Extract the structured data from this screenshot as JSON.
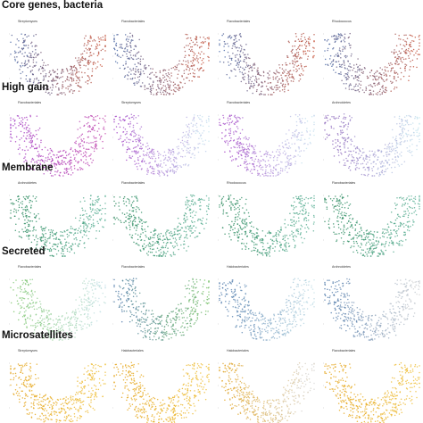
{
  "colors": {
    "core_blue": "#4a6aa8",
    "core_red": "#c8543a",
    "highgain_purple": "#a23ec4",
    "highgain_magenta": "#c54fb0",
    "highgain_light": "#c7e6f0",
    "membrane_green": "#2e8a5e",
    "membrane_teal": "#5fb39a",
    "secreted_green": "#7cc56a",
    "secreted_blue": "#4a76a8",
    "secreted_light": "#c8e3ea",
    "micro_orange": "#e3a21a",
    "micro_gold": "#f0c23c"
  },
  "sections": [
    {
      "title": "Core genes, bacteria",
      "panels": [
        "Streptomyces",
        "Flavobacteriales",
        "Flavobacteriales",
        "Rhodococcus"
      ]
    },
    {
      "title": "High gain",
      "panels": [
        "Flavobacteriales",
        "Streptomyces",
        "Flavobacteriales",
        "Archnoidetes"
      ]
    },
    {
      "title": "Membrane",
      "panels": [
        "Archnoidetes",
        "Flavobacteriales",
        "Rhodococcus",
        "Flavobacteriales"
      ]
    },
    {
      "title": "Secreted",
      "panels": [
        "Flavobacteriales",
        "Flavobacteriales",
        "Halobacteriales",
        "Archnoidetes"
      ]
    },
    {
      "title": "Microsatellites",
      "panels": [
        "Streptomyces",
        "Halobacteriales",
        "Halobacteriales",
        "Flavobacteriales"
      ]
    }
  ],
  "chart_data": {
    "type": "scatter",
    "layout": "small multiples, 5 rows x 4 columns",
    "grid": false,
    "panels": [
      {
        "row": "Core genes, bacteria",
        "col": 1,
        "colors": [
          "#4a6aa8",
          "#c8543a"
        ]
      },
      {
        "row": "Core genes, bacteria",
        "col": 2,
        "colors": [
          "#4a6aa8",
          "#c8543a"
        ]
      },
      {
        "row": "Core genes, bacteria",
        "col": 3,
        "colors": [
          "#4a6aa8",
          "#c8543a"
        ]
      },
      {
        "row": "Core genes, bacteria",
        "col": 4,
        "colors": [
          "#4a6aa8",
          "#c8543a"
        ]
      },
      {
        "row": "High gain",
        "col": 1,
        "colors": [
          "#a23ec4",
          "#c54fb0"
        ]
      },
      {
        "row": "High gain",
        "col": 2,
        "colors": [
          "#a23ec4",
          "#c7e6f0"
        ]
      },
      {
        "row": "High gain",
        "col": 3,
        "colors": [
          "#a23ec4",
          "#c7e6f0"
        ]
      },
      {
        "row": "High gain",
        "col": 4,
        "colors": [
          "#8b5fb8",
          "#c7e6f0"
        ]
      },
      {
        "row": "Membrane",
        "col": 1,
        "colors": [
          "#2e8a5e",
          "#5fb39a"
        ]
      },
      {
        "row": "Membrane",
        "col": 2,
        "colors": [
          "#2e8a5e",
          "#5fb39a"
        ]
      },
      {
        "row": "Membrane",
        "col": 3,
        "colors": [
          "#2e8a5e",
          "#5fb39a"
        ]
      },
      {
        "row": "Membrane",
        "col": 4,
        "colors": [
          "#2e8a5e",
          "#5fb39a"
        ]
      },
      {
        "row": "Secreted",
        "col": 1,
        "colors": [
          "#7cc56a",
          "#c8e3ea"
        ]
      },
      {
        "row": "Secreted",
        "col": 2,
        "colors": [
          "#4a76a8",
          "#7cc56a"
        ]
      },
      {
        "row": "Secreted",
        "col": 3,
        "colors": [
          "#4a76a8",
          "#c8e3ea"
        ]
      },
      {
        "row": "Secreted",
        "col": 4,
        "colors": [
          "#4a76a8",
          "#d6d6d6"
        ]
      },
      {
        "row": "Microsatellites",
        "col": 1,
        "colors": [
          "#e3a21a",
          "#f0c23c"
        ]
      },
      {
        "row": "Microsatellites",
        "col": 2,
        "colors": [
          "#e3a21a",
          "#f0c23c"
        ]
      },
      {
        "row": "Microsatellites",
        "col": 3,
        "colors": [
          "#e3a21a",
          "#d6d6d6"
        ]
      },
      {
        "row": "Microsatellites",
        "col": 4,
        "colors": [
          "#e3a21a",
          "#f0c23c"
        ]
      }
    ]
  }
}
